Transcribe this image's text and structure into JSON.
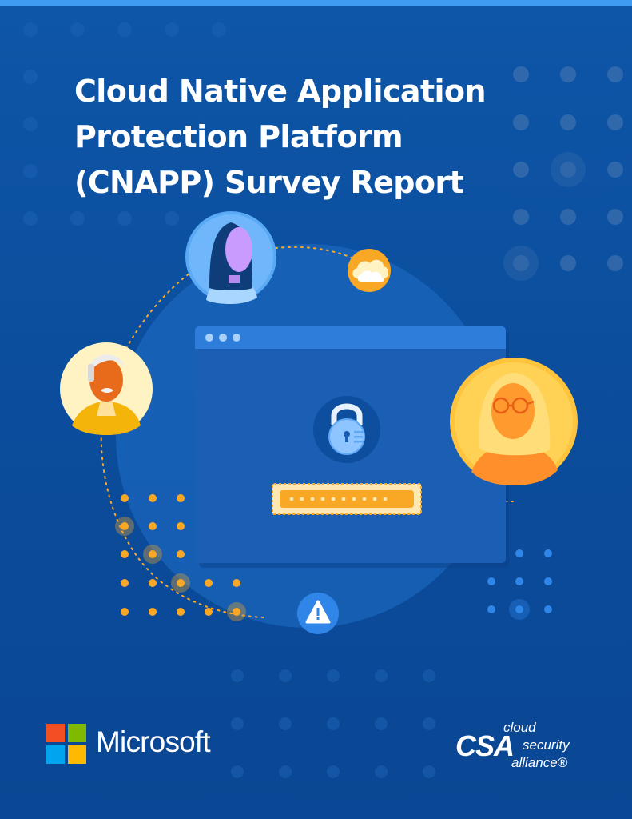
{
  "title": {
    "line1": "Cloud Native Application",
    "line2": "Protection Platform",
    "line3": "(CNAPP) Survey Report"
  },
  "illustration": {
    "icons": [
      "user-headscarf-icon",
      "user-elderly-man-icon",
      "user-woman-glasses-icon",
      "cloud-icon",
      "padlock-icon",
      "warning-icon",
      "browser-window-icon",
      "password-field-icon"
    ],
    "colors": {
      "accent": "#f9a825",
      "circle": "#1f6fc9",
      "window": "#1a5fb4",
      "alert": "#2f86e8"
    }
  },
  "footer": {
    "microsoft": {
      "name": "Microsoft",
      "colors": [
        "#f25022",
        "#7fba00",
        "#00a4ef",
        "#ffb900"
      ]
    },
    "csa": {
      "letters": "CSA",
      "line1": "cloud",
      "line2": "security",
      "line3": "alliance®"
    }
  }
}
